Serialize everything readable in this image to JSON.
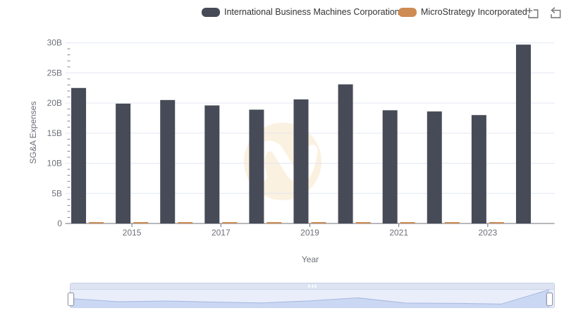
{
  "legend": {
    "items": [
      {
        "label": "International Business Machines Corporation",
        "color": "#474B57"
      },
      {
        "label": "MicroStrategy Incorporated",
        "color": "#CE8C53"
      }
    ]
  },
  "toolbox": {
    "icons": [
      "box-zoom-icon",
      "restore-icon"
    ]
  },
  "chart_data": {
    "type": "bar",
    "title": "",
    "categories": [
      "2014",
      "2015",
      "2016",
      "2017",
      "2018",
      "2019",
      "2020",
      "2021",
      "2022",
      "2023",
      "2024"
    ],
    "series": [
      {
        "name": "International Business Machines Corporation",
        "color": "#474B57",
        "values": [
          22.5,
          19.9,
          20.5,
          19.6,
          18.9,
          20.6,
          23.1,
          18.8,
          18.6,
          18.0,
          29.7
        ]
      },
      {
        "name": "MicroStrategy Incorporated",
        "color": "#CE8C53",
        "values": [
          0.2,
          0.2,
          0.2,
          0.2,
          0.2,
          0.2,
          0.2,
          0.2,
          0.2,
          0.2,
          null
        ]
      }
    ],
    "xlabel": "Year",
    "ylabel": "SG&A Expenses",
    "ylim": [
      0,
      30
    ],
    "y_ticks": [
      {
        "value": 0,
        "label": "0"
      },
      {
        "value": 5,
        "label": "5B"
      },
      {
        "value": 10,
        "label": "10B"
      },
      {
        "value": 15,
        "label": "15B"
      },
      {
        "value": 20,
        "label": "20B"
      },
      {
        "value": 25,
        "label": "25B"
      },
      {
        "value": 30,
        "label": "30B"
      }
    ],
    "x_tick_labels": [
      "2015",
      "2017",
      "2019",
      "2021",
      "2023"
    ],
    "grid": true,
    "legend_position": "top"
  },
  "colors": {
    "grid_line": "#E2E7F3",
    "axis_line": "#6E7079",
    "axis_text": "#6E7079",
    "minor_tick": "#81858F",
    "legend_text": "#333333",
    "watermark_bg": "#FBF1E0",
    "watermark_glyph": "#FFFFFF",
    "slider_area_fill": "#CBD8F3",
    "slider_area_line": "#A4B7E1",
    "slider_bg": "#EAEEFA",
    "slider_strip": "#DEE4F2",
    "slider_border": "#C7D0E5",
    "slider_handle_border": "#9298A6"
  }
}
